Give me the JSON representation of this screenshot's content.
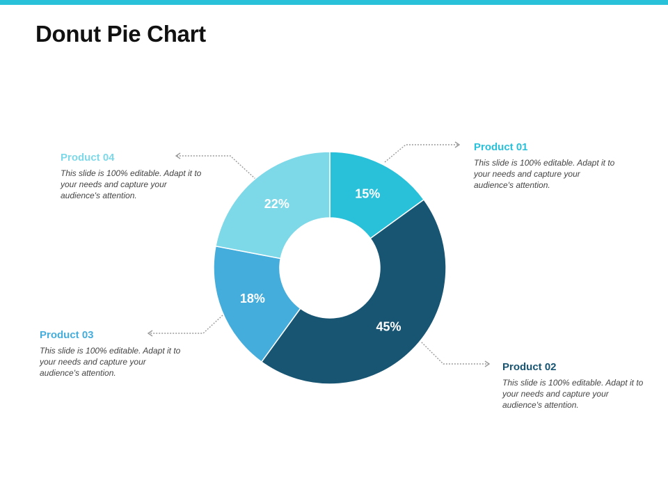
{
  "title": "Donut Pie Chart",
  "colors": {
    "accent_bar": "#29C0DA",
    "product_01": "#29C0DA",
    "product_02": "#185572",
    "product_03": "#45ADDC",
    "product_04": "#7DD8E8",
    "connector": "#9a9a9a"
  },
  "chart_data": {
    "type": "pie",
    "donut": true,
    "categories": [
      "Product 01",
      "Product 02",
      "Product 03",
      "Product 04"
    ],
    "values": [
      15,
      45,
      18,
      22
    ],
    "labels": [
      "15%",
      "45%",
      "18%",
      "22%"
    ]
  },
  "callouts": [
    {
      "id": "p01",
      "title": "Product 01",
      "desc": "This slide is 100% editable. Adapt it to your needs and capture your audience's attention."
    },
    {
      "id": "p02",
      "title": "Product 02",
      "desc": "This slide is 100% editable. Adapt it to your needs and capture your audience's attention."
    },
    {
      "id": "p03",
      "title": "Product 03",
      "desc": "This slide is 100% editable. Adapt it to your needs and capture your audience's attention."
    },
    {
      "id": "p04",
      "title": "Product 04",
      "desc": "This slide is 100% editable. Adapt it to your needs and capture your audience's attention."
    }
  ]
}
